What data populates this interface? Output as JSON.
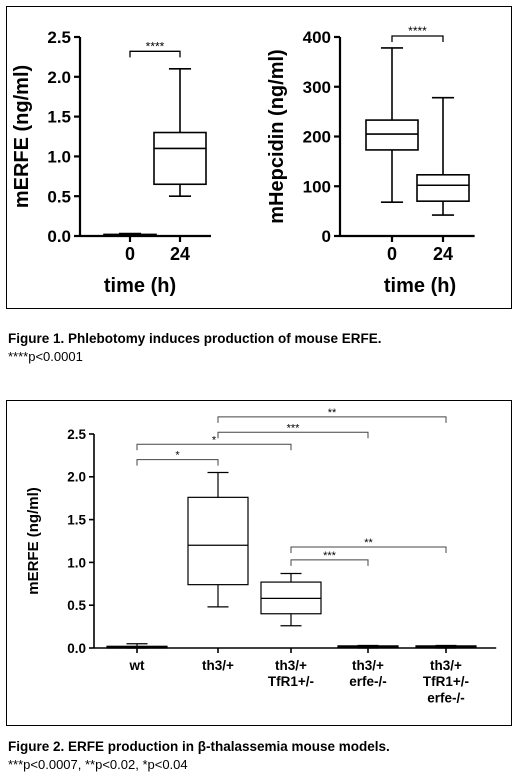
{
  "chart_data": [
    {
      "type": "box",
      "ylabel": "mERFE (ng/ml)",
      "xlabel": "time (h)",
      "ylim": [
        0,
        2.5
      ],
      "yticks": [
        0.0,
        0.5,
        1.0,
        1.5,
        2.0,
        2.5
      ],
      "ytick_labels": [
        "0.0",
        "0.5",
        "1.0",
        "1.5",
        "2.0",
        "2.5"
      ],
      "categories": [
        "0",
        "24"
      ],
      "boxes": [
        {
          "min": 0.0,
          "q1": 0.0,
          "median": 0.01,
          "q3": 0.02,
          "max": 0.03
        },
        {
          "min": 0.5,
          "q1": 0.65,
          "median": 1.1,
          "q3": 1.3,
          "max": 2.1
        }
      ],
      "significance": [
        {
          "from": 0,
          "to": 1,
          "label": "****",
          "y": 2.32
        }
      ]
    },
    {
      "type": "box",
      "ylabel": "mHepcidin (ng/ml)",
      "xlabel": "time (h)",
      "ylim": [
        0,
        400
      ],
      "yticks": [
        0,
        100,
        200,
        300,
        400
      ],
      "ytick_labels": [
        "0",
        "100",
        "200",
        "300",
        "400"
      ],
      "categories": [
        "0",
        "24"
      ],
      "boxes": [
        {
          "min": 68,
          "q1": 173,
          "median": 205,
          "q3": 233,
          "max": 378
        },
        {
          "min": 42,
          "q1": 70,
          "median": 102,
          "q3": 123,
          "max": 278
        }
      ],
      "significance": [
        {
          "from": 0,
          "to": 1,
          "label": "****",
          "y": 402
        }
      ]
    },
    {
      "type": "box",
      "ylabel": "mERFE (ng/ml)",
      "xlabel": "",
      "ylim": [
        0,
        2.5
      ],
      "yticks": [
        0.0,
        0.5,
        1.0,
        1.5,
        2.0,
        2.5
      ],
      "ytick_labels": [
        "0.0",
        "0.5",
        "1.0",
        "1.5",
        "2.0",
        "2.5"
      ],
      "categories": [
        "wt",
        "th3/+",
        "th3/+\nTfR1+/-",
        "th3/+\nerfe-/-",
        "th3/+\nTfR1+/-\nerfe-/-"
      ],
      "boxes": [
        {
          "min": 0.0,
          "q1": 0.0,
          "median": 0.01,
          "q3": 0.02,
          "max": 0.05
        },
        {
          "min": 0.48,
          "q1": 0.74,
          "median": 1.2,
          "q3": 1.76,
          "max": 2.05
        },
        {
          "min": 0.26,
          "q1": 0.4,
          "median": 0.58,
          "q3": 0.77,
          "max": 0.87
        },
        {
          "min": 0.0,
          "q1": 0.01,
          "median": 0.02,
          "q3": 0.025,
          "max": 0.03
        },
        {
          "min": 0.0,
          "q1": 0.01,
          "median": 0.02,
          "q3": 0.025,
          "max": 0.03
        }
      ],
      "significance": [
        {
          "from": 0,
          "to": 1,
          "label": "*",
          "y": 2.2
        },
        {
          "from": 0,
          "to": 2,
          "label": "*",
          "y": 2.38
        },
        {
          "from": 1,
          "to": 3,
          "label": "***",
          "y": 2.52
        },
        {
          "from": 1,
          "to": 4,
          "label": "**",
          "y": 2.7
        },
        {
          "from": 2,
          "to": 3,
          "label": "***",
          "y": 1.03
        },
        {
          "from": 2,
          "to": 4,
          "label": "**",
          "y": 1.18
        }
      ]
    }
  ],
  "captions": {
    "fig1_title": "Figure 1.  Phlebotomy induces production of mouse ERFE.",
    "fig1_note": "****p<0.0001",
    "fig2_title": "Figure 2. ERFE production in β-thalassemia mouse models.",
    "fig2_note": "***p<0.0007, **p<0.02, *p<0.04"
  }
}
